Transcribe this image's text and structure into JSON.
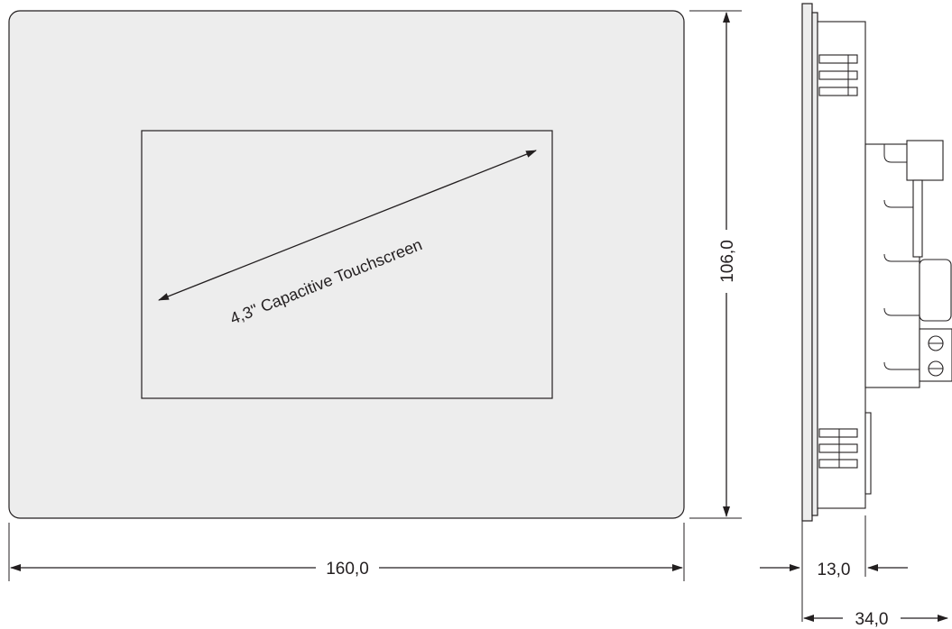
{
  "diagram": {
    "screen_label": "4,3\" Capacitive Touchscreen",
    "dimensions": {
      "width": "160,0",
      "height": "106,0",
      "front_depth": "13,0",
      "total_depth": "34,0"
    },
    "colors": {
      "panel_fill": "#ededed",
      "line": "#231f20",
      "background": "#ffffff"
    }
  }
}
